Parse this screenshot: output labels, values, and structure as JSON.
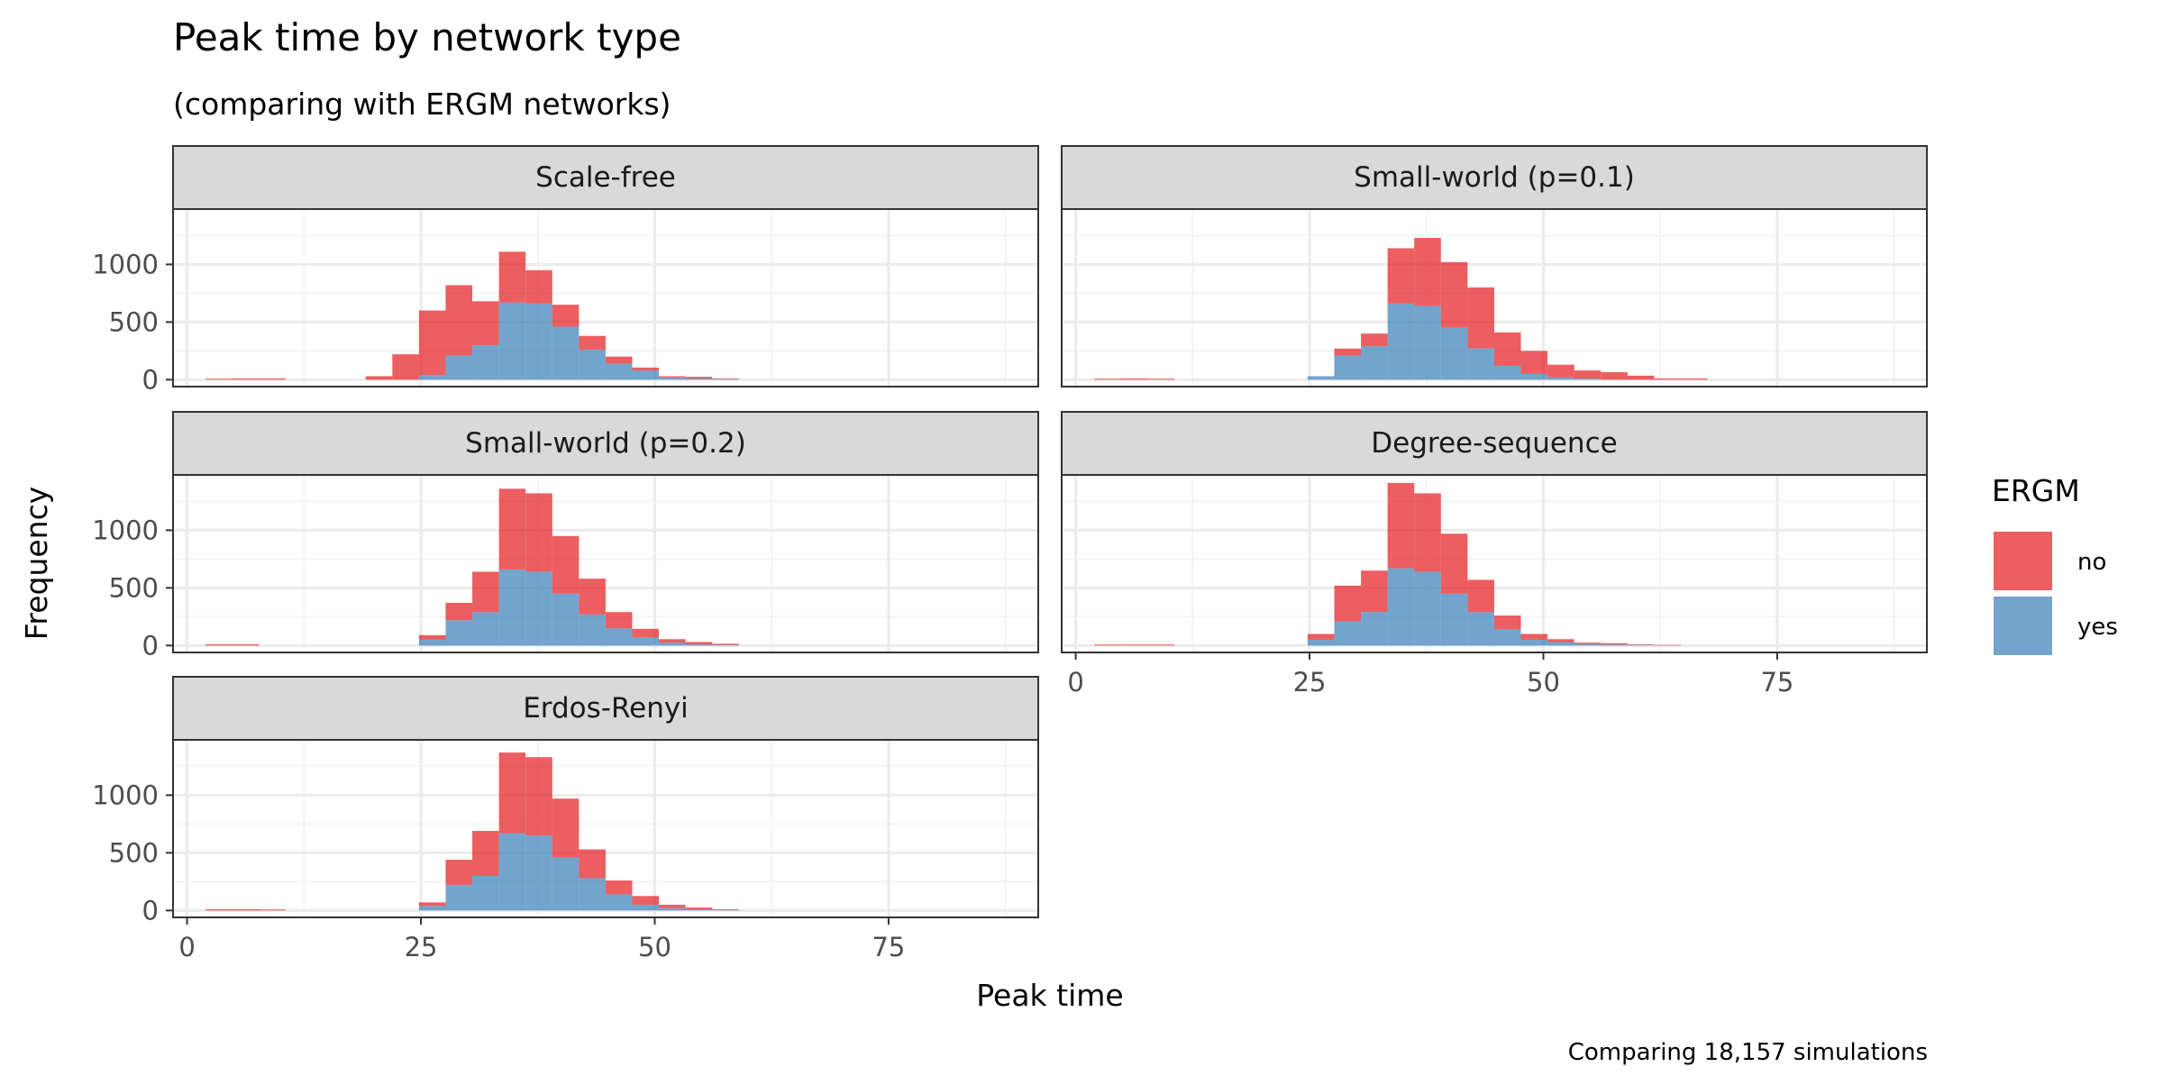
{
  "chart_data": {
    "type": "bar",
    "title": "Peak time by network type",
    "subtitle": "(comparing with ERGM networks)",
    "xlabel": "Peak time",
    "ylabel": "Frequency",
    "caption": "Comparing 18,157 simulations",
    "xlim": [
      -1.5,
      91
    ],
    "ylim": [
      -60,
      1480
    ],
    "x_ticks": [
      0,
      25,
      50,
      75
    ],
    "y_ticks": [
      0,
      500,
      1000
    ],
    "grid": true,
    "legend": {
      "title": "ERGM",
      "position": "right",
      "entries": [
        "no",
        "yes"
      ]
    },
    "colors": {
      "no": "#E41A1C",
      "yes": "#377EB8",
      "strip_bg": "#D9D9D9",
      "grid": "#EBEBEB",
      "border": "#333333"
    },
    "bin_width": 2.85,
    "bin_centers": [
      3.42,
      6.27,
      9.12,
      11.97,
      14.82,
      17.67,
      20.52,
      23.37,
      26.22,
      29.07,
      31.92,
      34.77,
      37.62,
      40.47,
      43.32,
      46.17,
      49.02,
      51.87,
      54.72,
      57.57,
      60.42,
      63.27,
      66.12,
      68.97,
      71.82,
      74.67
    ],
    "panels": [
      {
        "name": "Scale-free",
        "yes": [
          0,
          0,
          0,
          0,
          0,
          0,
          0,
          0,
          40,
          210,
          300,
          670,
          660,
          460,
          260,
          140,
          80,
          20,
          10,
          5,
          0,
          0,
          0,
          0,
          0,
          0
        ],
        "no": [
          8,
          10,
          10,
          0,
          0,
          0,
          30,
          220,
          560,
          610,
          380,
          440,
          290,
          190,
          120,
          60,
          25,
          10,
          15,
          5,
          0,
          0,
          0,
          0,
          0,
          0
        ]
      },
      {
        "name": "Small-world (p=0.1)",
        "yes": [
          0,
          0,
          0,
          0,
          0,
          0,
          0,
          0,
          30,
          210,
          290,
          660,
          640,
          450,
          270,
          120,
          50,
          20,
          10,
          0,
          0,
          0,
          0,
          0,
          0,
          0
        ],
        "no": [
          8,
          10,
          8,
          0,
          0,
          0,
          0,
          0,
          0,
          60,
          110,
          480,
          590,
          570,
          530,
          290,
          200,
          110,
          70,
          65,
          35,
          10,
          10,
          0,
          0,
          0
        ]
      },
      {
        "name": "Small-world (p=0.2)",
        "yes": [
          0,
          0,
          0,
          0,
          0,
          0,
          0,
          0,
          50,
          220,
          290,
          660,
          640,
          450,
          270,
          150,
          70,
          25,
          10,
          5,
          0,
          0,
          0,
          0,
          0,
          0
        ],
        "no": [
          10,
          10,
          0,
          0,
          0,
          0,
          0,
          0,
          40,
          150,
          350,
          700,
          680,
          500,
          310,
          140,
          75,
          30,
          20,
          10,
          0,
          0,
          0,
          0,
          0,
          0
        ]
      },
      {
        "name": "Degree-sequence",
        "yes": [
          0,
          0,
          0,
          0,
          0,
          0,
          0,
          0,
          50,
          210,
          290,
          670,
          640,
          450,
          290,
          140,
          50,
          30,
          15,
          10,
          5,
          0,
          0,
          0,
          0,
          0
        ],
        "no": [
          8,
          8,
          8,
          0,
          0,
          0,
          0,
          0,
          50,
          310,
          360,
          740,
          680,
          520,
          280,
          120,
          50,
          25,
          10,
          10,
          5,
          5,
          0,
          0,
          0,
          0
        ]
      },
      {
        "name": "Erdos-Renyi",
        "yes": [
          0,
          0,
          0,
          0,
          0,
          0,
          0,
          0,
          40,
          220,
          300,
          670,
          650,
          460,
          280,
          140,
          50,
          20,
          10,
          5,
          0,
          0,
          0,
          0,
          0,
          0
        ],
        "no": [
          10,
          10,
          8,
          0,
          0,
          0,
          0,
          0,
          30,
          220,
          390,
          700,
          680,
          510,
          250,
          120,
          75,
          30,
          15,
          5,
          0,
          0,
          0,
          0,
          0,
          0
        ]
      }
    ]
  }
}
